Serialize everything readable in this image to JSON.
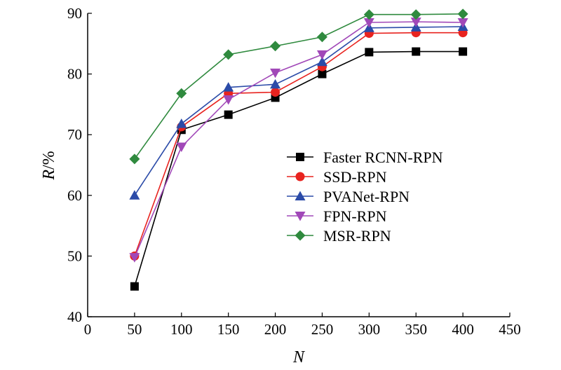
{
  "chart_data": {
    "type": "line",
    "xlabel": "N",
    "ylabel": {
      "var": "R",
      "unit": "/%"
    },
    "xlim": [
      0,
      450
    ],
    "ylim": [
      40,
      90
    ],
    "xticks": [
      0,
      50,
      100,
      150,
      200,
      250,
      300,
      350,
      400,
      450
    ],
    "yticks": [
      40,
      50,
      60,
      70,
      80,
      90
    ],
    "grid": false,
    "legend_position": "center-right",
    "x": [
      50,
      100,
      150,
      200,
      250,
      300,
      350,
      400
    ],
    "series": [
      {
        "name": "Faster RCNN-RPN",
        "color": "#000000",
        "marker": "square",
        "values": [
          45.0,
          70.8,
          73.3,
          76.1,
          80.0,
          83.6,
          83.7,
          83.7
        ]
      },
      {
        "name": "SSD-RPN",
        "color": "#e8231f",
        "marker": "circle",
        "values": [
          50.0,
          71.3,
          76.8,
          77.0,
          81.2,
          86.7,
          86.8,
          86.8
        ]
      },
      {
        "name": "PVANet-RPN",
        "color": "#2b4ba8",
        "marker": "triangle-up",
        "values": [
          60.0,
          71.8,
          77.8,
          78.3,
          82.0,
          87.6,
          87.7,
          87.8
        ]
      },
      {
        "name": "FPN-RPN",
        "color": "#a148b8",
        "marker": "triangle-down",
        "values": [
          49.8,
          68.0,
          75.8,
          80.2,
          83.2,
          88.5,
          88.6,
          88.5
        ]
      },
      {
        "name": "MSR-RPN",
        "color": "#2f8a3e",
        "marker": "diamond",
        "values": [
          66.0,
          76.8,
          83.2,
          84.6,
          86.1,
          89.8,
          89.8,
          89.9
        ]
      }
    ]
  }
}
